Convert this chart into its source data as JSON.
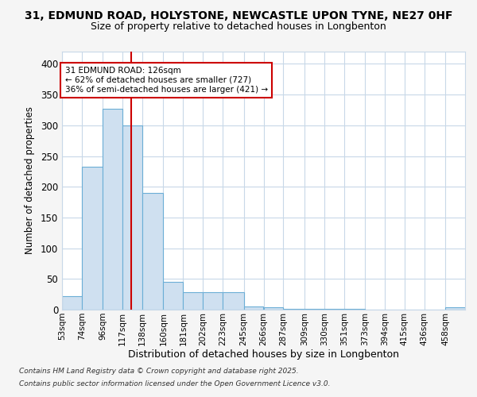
{
  "title1": "31, EDMUND ROAD, HOLYSTONE, NEWCASTLE UPON TYNE, NE27 0HF",
  "title2": "Size of property relative to detached houses in Longbenton",
  "xlabel": "Distribution of detached houses by size in Longbenton",
  "ylabel": "Number of detached properties",
  "footer1": "Contains HM Land Registry data © Crown copyright and database right 2025.",
  "footer2": "Contains public sector information licensed under the Open Government Licence v3.0.",
  "annotation_title": "31 EDMUND ROAD: 126sqm",
  "annotation_line1": "← 62% of detached houses are smaller (727)",
  "annotation_line2": "36% of semi-detached houses are larger (421) →",
  "property_size": 126,
  "bar_color": "#cfe0f0",
  "bar_edge_color": "#6baed6",
  "vline_color": "#cc0000",
  "background_color": "#f5f5f5",
  "plot_bg_color": "#ffffff",
  "grid_color": "#c8d8e8",
  "bins": [
    53,
    74,
    96,
    117,
    138,
    160,
    181,
    202,
    223,
    245,
    266,
    287,
    309,
    330,
    351,
    373,
    394,
    415,
    436,
    458,
    479
  ],
  "counts": [
    22,
    233,
    327,
    300,
    190,
    45,
    28,
    28,
    29,
    5,
    4,
    1,
    1,
    1,
    1,
    0,
    0,
    0,
    0,
    4
  ],
  "ylim": [
    0,
    420
  ],
  "yticks": [
    0,
    50,
    100,
    150,
    200,
    250,
    300,
    350,
    400
  ]
}
